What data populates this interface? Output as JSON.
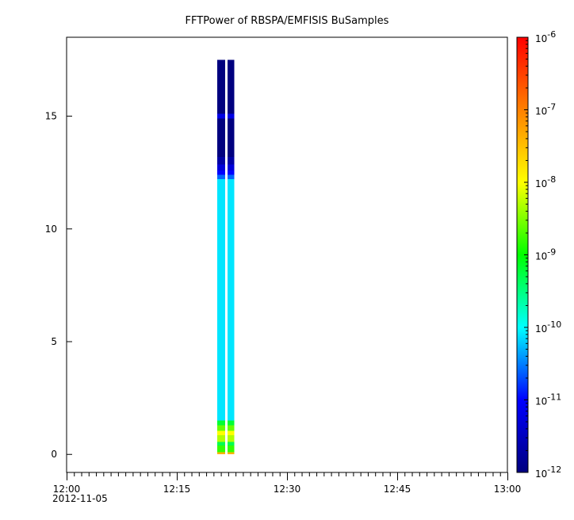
{
  "chart_data": {
    "type": "heatmap",
    "title": "FFTPower of RBSPA/EMFISIS  BuSamples",
    "xlabel": "",
    "ylabel": "",
    "x_axis": {
      "range": [
        "12:00",
        "13:00"
      ],
      "ticks": [
        "12:00",
        "12:15",
        "12:30",
        "12:45",
        "13:00"
      ],
      "date_label": "2012-11-05"
    },
    "y_axis": {
      "range": [
        -0.8,
        18.5
      ],
      "ticks": [
        0,
        5,
        10,
        15
      ]
    },
    "colorbar": {
      "scale": "log",
      "range": [
        1e-12,
        1e-06
      ],
      "tick_base": "10",
      "tick_exponents": [
        "-12",
        "-11",
        "-10",
        "-9",
        "-8",
        "-7",
        "-6"
      ],
      "colormap": [
        "#00007f",
        "#0000ff",
        "#00ffff",
        "#00ff00",
        "#ffff00",
        "#ff8000",
        "#ff0000"
      ]
    },
    "series": [
      {
        "time_start_min": 20.5,
        "time_end_min": 21.6,
        "freq_max": 17.5,
        "spectrum": [
          {
            "y0": 0.0,
            "y1": 0.1,
            "power_exp": -7.4
          },
          {
            "y0": 0.1,
            "y1": 0.4,
            "power_exp": -8.8
          },
          {
            "y0": 0.4,
            "y1": 0.55,
            "power_exp": -9.3
          },
          {
            "y0": 0.55,
            "y1": 0.85,
            "power_exp": -8.3
          },
          {
            "y0": 0.85,
            "y1": 1.05,
            "power_exp": -8.0
          },
          {
            "y0": 1.05,
            "y1": 1.3,
            "power_exp": -8.6
          },
          {
            "y0": 1.3,
            "y1": 1.5,
            "power_exp": -9.2
          },
          {
            "y0": 1.5,
            "y1": 12.2,
            "power_exp": -10.1
          },
          {
            "y0": 12.2,
            "y1": 12.4,
            "power_exp": -10.6
          },
          {
            "y0": 12.4,
            "y1": 12.6,
            "power_exp": -11.0
          },
          {
            "y0": 12.6,
            "y1": 12.85,
            "power_exp": -11.3
          },
          {
            "y0": 12.85,
            "y1": 13.2,
            "power_exp": -11.7
          },
          {
            "y0": 13.2,
            "y1": 14.9,
            "power_exp": -12.0
          },
          {
            "y0": 14.9,
            "y1": 15.1,
            "power_exp": -11.2
          },
          {
            "y0": 15.1,
            "y1": 17.5,
            "power_exp": -12.0
          }
        ]
      },
      {
        "time_start_min": 21.9,
        "time_end_min": 22.8,
        "freq_max": 17.5,
        "spectrum": [
          {
            "y0": 0.0,
            "y1": 0.1,
            "power_exp": -7.4
          },
          {
            "y0": 0.1,
            "y1": 0.4,
            "power_exp": -8.8
          },
          {
            "y0": 0.4,
            "y1": 0.55,
            "power_exp": -9.3
          },
          {
            "y0": 0.55,
            "y1": 0.85,
            "power_exp": -8.3
          },
          {
            "y0": 0.85,
            "y1": 1.05,
            "power_exp": -8.0
          },
          {
            "y0": 1.05,
            "y1": 1.3,
            "power_exp": -8.6
          },
          {
            "y0": 1.3,
            "y1": 1.5,
            "power_exp": -9.2
          },
          {
            "y0": 1.5,
            "y1": 12.2,
            "power_exp": -10.1
          },
          {
            "y0": 12.2,
            "y1": 12.4,
            "power_exp": -10.6
          },
          {
            "y0": 12.4,
            "y1": 12.6,
            "power_exp": -11.0
          },
          {
            "y0": 12.6,
            "y1": 12.85,
            "power_exp": -11.3
          },
          {
            "y0": 12.85,
            "y1": 13.2,
            "power_exp": -11.7
          },
          {
            "y0": 13.2,
            "y1": 14.9,
            "power_exp": -12.0
          },
          {
            "y0": 14.9,
            "y1": 15.1,
            "power_exp": -11.2
          },
          {
            "y0": 15.1,
            "y1": 17.5,
            "power_exp": -12.0
          }
        ]
      }
    ]
  }
}
